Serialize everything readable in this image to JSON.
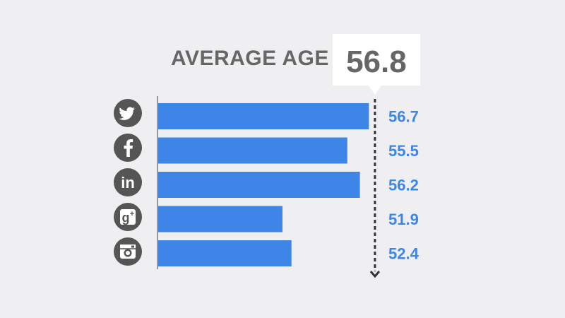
{
  "chart_data": {
    "type": "bar",
    "orientation": "horizontal",
    "title": "AVERAGE AGE",
    "categories": [
      "twitter",
      "facebook",
      "linkedin",
      "google-plus",
      "instagram"
    ],
    "values": [
      56.7,
      55.5,
      56.2,
      51.9,
      52.4
    ],
    "value_labels": [
      "56.7",
      "55.5",
      "56.2",
      "51.9",
      "52.4"
    ],
    "reference": {
      "value": 56.8,
      "label": "56.8"
    },
    "grid": false,
    "legend": "none"
  },
  "icons": [
    "twitter-icon",
    "facebook-icon",
    "linkedin-icon",
    "google-plus-icon",
    "instagram-icon"
  ],
  "colors": {
    "background": "#efeff2",
    "bar": "#3d86e8",
    "value_text": "#3d86e8",
    "title_text": "#666666",
    "icon_circle": "#555555",
    "reference_line": "#333333"
  }
}
